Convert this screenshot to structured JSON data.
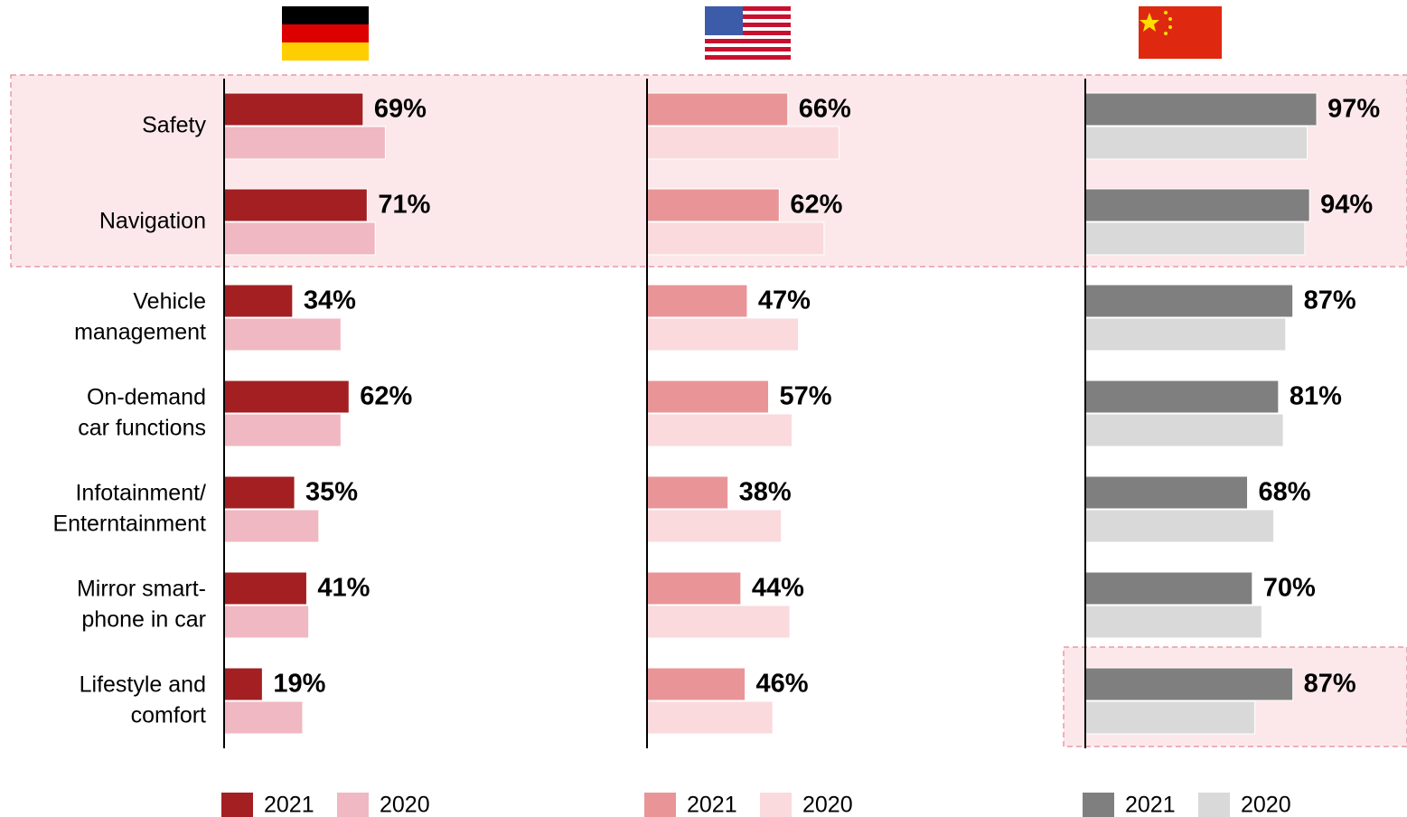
{
  "chart_data": [
    {
      "type": "bar",
      "categories": [
        [
          "Safety"
        ],
        [
          "Navigation"
        ],
        [
          "Vehicle",
          "management"
        ],
        [
          "On-demand",
          "car functions"
        ],
        [
          "Infotainment/",
          "Enterntainment"
        ],
        [
          "Mirror smart-",
          "phone in car"
        ],
        [
          "Lifestyle and",
          "comfort"
        ]
      ],
      "xlim": [
        0,
        100
      ],
      "series": [
        {
          "name": "2021",
          "color": "#a31f22",
          "values": [
            69,
            71,
            34,
            62,
            35,
            41,
            19
          ],
          "value_labels": [
            "69%",
            "71%",
            "34%",
            "62%",
            "35%",
            "41%",
            "19%"
          ]
        },
        {
          "name": "2020",
          "color": "#f0b8c2",
          "values": [
            80,
            75,
            58,
            58,
            47,
            42,
            39
          ]
        }
      ]
    },
    {
      "type": "bar",
      "xlim": [
        0,
        100
      ],
      "series": [
        {
          "name": "2021",
          "color": "#e99597",
          "values": [
            66,
            62,
            47,
            57,
            38,
            44,
            46
          ],
          "value_labels": [
            "66%",
            "62%",
            "47%",
            "57%",
            "38%",
            "44%",
            "46%"
          ]
        },
        {
          "name": "2020",
          "color": "#fadadd",
          "values": [
            90,
            83,
            71,
            68,
            63,
            67,
            59
          ]
        }
      ]
    },
    {
      "type": "bar",
      "xlim": [
        0,
        100
      ],
      "series": [
        {
          "name": "2021",
          "color": "#7f7f7f",
          "values": [
            97,
            94,
            87,
            81,
            68,
            70,
            87
          ],
          "value_labels": [
            "97%",
            "94%",
            "87%",
            "81%",
            "68%",
            "70%",
            "87%"
          ]
        },
        {
          "name": "2020",
          "color": "#d9d9d9",
          "values": [
            93,
            92,
            84,
            83,
            79,
            74,
            71
          ]
        }
      ]
    }
  ]
}
